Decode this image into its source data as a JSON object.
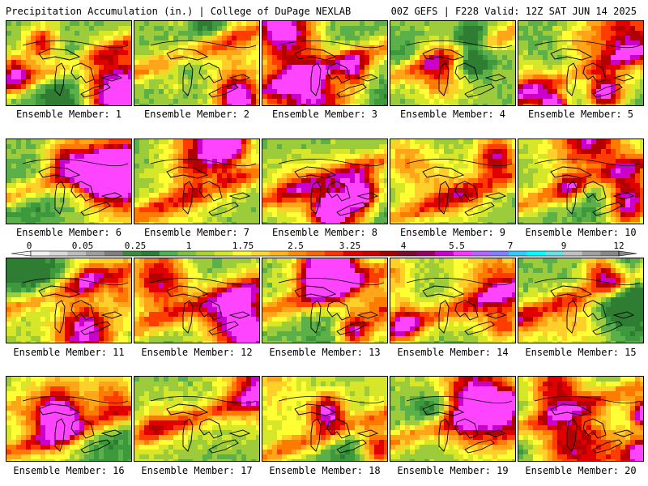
{
  "header": {
    "left": "Precipitation Accumulation (in.) | College of DuPage NEXLAB",
    "right": "00Z GEFS | F228 Valid: 12Z SAT JUN 14 2025"
  },
  "panels": [
    {
      "label": "Ensemble Member: 1"
    },
    {
      "label": "Ensemble Member: 2"
    },
    {
      "label": "Ensemble Member: 3"
    },
    {
      "label": "Ensemble Member: 4"
    },
    {
      "label": "Ensemble Member: 5"
    },
    {
      "label": "Ensemble Member: 6"
    },
    {
      "label": "Ensemble Member: 7"
    },
    {
      "label": "Ensemble Member: 8"
    },
    {
      "label": "Ensemble Member: 9"
    },
    {
      "label": "Ensemble Member: 10"
    },
    {
      "label": "Ensemble Member: 11"
    },
    {
      "label": "Ensemble Member: 12"
    },
    {
      "label": "Ensemble Member: 13"
    },
    {
      "label": "Ensemble Member: 14"
    },
    {
      "label": "Ensemble Member: 15"
    },
    {
      "label": "Ensemble Member: 16"
    },
    {
      "label": "Ensemble Member: 17"
    },
    {
      "label": "Ensemble Member: 18"
    },
    {
      "label": "Ensemble Member: 19"
    },
    {
      "label": "Ensemble Member: 20"
    }
  ],
  "colorbar": {
    "tick_labels": [
      "0",
      "0.05",
      "0.25",
      "1",
      "1.75",
      "2.5",
      "3.25",
      "4",
      "5.5",
      "7",
      "9",
      "12"
    ],
    "colors": [
      "#f2f2f2",
      "#d9d9d9",
      "#bdbdbd",
      "#9e9e9e",
      "#7f7f7f",
      "#3c8a3c",
      "#2e7d32",
      "#4caf50",
      "#7cc242",
      "#a8d42e",
      "#d4e62a",
      "#ffff33",
      "#ffd633",
      "#ffb31a",
      "#ff8c00",
      "#ff6600",
      "#ff3300",
      "#e60000",
      "#cc0000",
      "#a30000",
      "#7a0a30",
      "#990066",
      "#cc00cc",
      "#ff33ff",
      "#b266ff",
      "#7f7fff",
      "#33ccff",
      "#00ffff",
      "#66e0e0",
      "#c0c0c0",
      "#a0a0a0",
      "#888888"
    ]
  }
}
